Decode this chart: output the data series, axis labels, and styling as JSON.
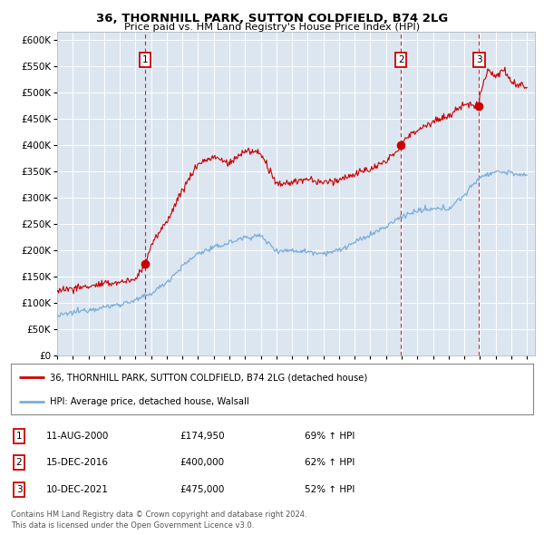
{
  "title1": "36, THORNHILL PARK, SUTTON COLDFIELD, B74 2LG",
  "title2": "Price paid vs. HM Land Registry's House Price Index (HPI)",
  "ytick_values": [
    0,
    50000,
    100000,
    150000,
    200000,
    250000,
    300000,
    350000,
    400000,
    450000,
    500000,
    550000,
    600000
  ],
  "ylim": [
    0,
    615000
  ],
  "background_color": "#dce6f1",
  "plot_bg": "#dce6f1",
  "line_color_red": "#cc0000",
  "line_color_blue": "#7aaddb",
  "sale_markers": [
    {
      "date_num": 2000.617,
      "price": 174950,
      "label": "1"
    },
    {
      "date_num": 2016.958,
      "price": 400000,
      "label": "2"
    },
    {
      "date_num": 2021.942,
      "price": 475000,
      "label": "3"
    }
  ],
  "legend_line1": "36, THORNHILL PARK, SUTTON COLDFIELD, B74 2LG (detached house)",
  "legend_line2": "HPI: Average price, detached house, Walsall",
  "table_rows": [
    {
      "num": "1",
      "date": "11-AUG-2000",
      "price": "£174,950",
      "hpi": "69% ↑ HPI"
    },
    {
      "num": "2",
      "date": "15-DEC-2016",
      "price": "£400,000",
      "hpi": "62% ↑ HPI"
    },
    {
      "num": "3",
      "date": "10-DEC-2021",
      "price": "£475,000",
      "hpi": "52% ↑ HPI"
    }
  ],
  "footer1": "Contains HM Land Registry data © Crown copyright and database right 2024.",
  "footer2": "This data is licensed under the Open Government Licence v3.0.",
  "xmin": 1995.0,
  "xmax": 2025.5,
  "xticks": [
    1995,
    1996,
    1997,
    1998,
    1999,
    2000,
    2001,
    2002,
    2003,
    2004,
    2005,
    2006,
    2007,
    2008,
    2009,
    2010,
    2011,
    2012,
    2013,
    2014,
    2015,
    2016,
    2017,
    2018,
    2019,
    2020,
    2021,
    2022,
    2023,
    2024,
    2025
  ]
}
